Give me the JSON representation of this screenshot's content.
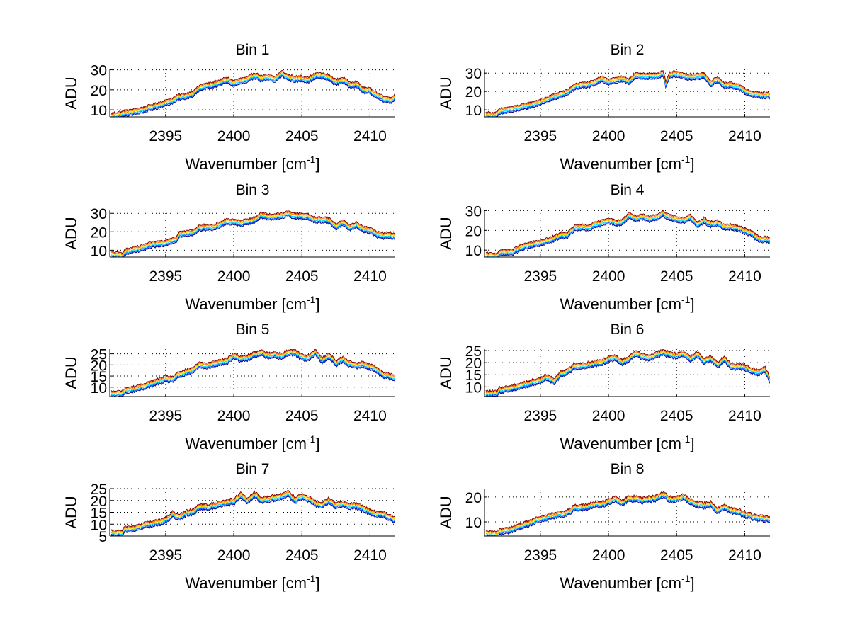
{
  "figure": {
    "background": "#ffffff",
    "series_colors": [
      "#00008f",
      "#0050ff",
      "#00dfff",
      "#ffe000",
      "#ff6f00",
      "#800000"
    ],
    "series_offsets": [
      -1.4,
      -0.8,
      -0.2,
      0.4,
      1.0,
      1.6
    ]
  },
  "chart_data": [
    {
      "type": "line",
      "title": "Bin 1",
      "xlabel": "Wavenumber [cm",
      "xlabel_sup": "-1",
      "xlabel_close": "]",
      "ylabel": "ADU",
      "xlim": [
        2390.9,
        2411.85
      ],
      "ylim": [
        6.5,
        30.2
      ],
      "xticks": [
        2395,
        2400,
        2405,
        2410
      ],
      "xtick_labels": [
        "2395",
        "2400",
        "2405",
        "2410"
      ],
      "yticks": [
        10,
        20,
        30
      ],
      "ytick_labels": [
        "10",
        "20",
        "30"
      ],
      "grid": true,
      "x": [
        2391,
        2392,
        2393,
        2394,
        2395,
        2395.5,
        2396,
        2396.5,
        2397,
        2397.5,
        2398,
        2398.5,
        2399,
        2399.5,
        2400,
        2400.5,
        2401,
        2401.5,
        2402,
        2402.5,
        2403,
        2403.5,
        2404,
        2404.5,
        2405,
        2405.5,
        2406,
        2406.5,
        2407,
        2407.5,
        2408,
        2408.5,
        2409,
        2409.5,
        2410,
        2410.5,
        2411,
        2411.5,
        2411.85
      ],
      "y": [
        6.8,
        8.0,
        9.3,
        11.2,
        13.3,
        14.5,
        16.2,
        16.8,
        18.0,
        20.8,
        21.8,
        22.3,
        23.5,
        24.8,
        23.2,
        24.2,
        24.8,
        27.2,
        25.6,
        26.0,
        25.0,
        28.0,
        26.0,
        25.2,
        25.4,
        25.0,
        27.0,
        26.8,
        26.0,
        23.6,
        24.8,
        22.4,
        22.8,
        19.6,
        19.4,
        17.2,
        15.4,
        14.6,
        16.4
      ]
    },
    {
      "type": "line",
      "title": "Bin 2",
      "xlabel": "Wavenumber [cm",
      "xlabel_sup": "-1",
      "xlabel_close": "]",
      "ylabel": "ADU",
      "xlim": [
        2390.9,
        2411.85
      ],
      "ylim": [
        6.2,
        32
      ],
      "xticks": [
        2395,
        2400,
        2405,
        2410
      ],
      "xtick_labels": [
        "2395",
        "2400",
        "2405",
        "2410"
      ],
      "yticks": [
        10,
        20,
        30
      ],
      "ytick_labels": [
        "10",
        "20",
        "30"
      ],
      "grid": true,
      "x": [
        2391,
        2391.8,
        2392,
        2393,
        2394,
        2395,
        2396,
        2396.5,
        2397,
        2397.5,
        2398,
        2398.5,
        2399,
        2399.5,
        2400,
        2400.5,
        2401,
        2401.5,
        2402,
        2402.5,
        2403,
        2403.5,
        2404,
        2404.2,
        2404.5,
        2405,
        2405.5,
        2406,
        2406.5,
        2407,
        2407.5,
        2408,
        2408.5,
        2409,
        2409.5,
        2410,
        2410.5,
        2411,
        2411.85
      ],
      "y": [
        7.0,
        7.0,
        9.0,
        10.2,
        12.0,
        14.0,
        17.0,
        18.0,
        19.5,
        22.5,
        23.2,
        23.5,
        24.5,
        27.0,
        25.0,
        26.0,
        26.5,
        25.5,
        28.5,
        28.0,
        28.5,
        28.0,
        30.0,
        24.0,
        29.0,
        29.5,
        28.0,
        27.5,
        28.0,
        28.5,
        24.0,
        26.5,
        23.0,
        23.5,
        22.5,
        20.0,
        18.5,
        18.0,
        17.5
      ]
    },
    {
      "type": "line",
      "title": "Bin 3",
      "xlabel": "Wavenumber [cm",
      "xlabel_sup": "-1",
      "xlabel_close": "]",
      "ylabel": "ADU",
      "xlim": [
        2390.9,
        2411.85
      ],
      "ylim": [
        6.3,
        32
      ],
      "xticks": [
        2395,
        2400,
        2405,
        2410
      ],
      "xtick_labels": [
        "2395",
        "2400",
        "2405",
        "2410"
      ],
      "yticks": [
        10,
        20,
        30
      ],
      "ytick_labels": [
        "10",
        "20",
        "30"
      ],
      "grid": true,
      "x": [
        2391,
        2391.8,
        2392,
        2393,
        2394,
        2395,
        2395.8,
        2396,
        2396.5,
        2397,
        2397.5,
        2398,
        2398.5,
        2399,
        2399.5,
        2400,
        2400.5,
        2401,
        2401.5,
        2402,
        2402.5,
        2403,
        2403.5,
        2404,
        2404.5,
        2405,
        2405.5,
        2406,
        2406.5,
        2407,
        2407.5,
        2408,
        2408.5,
        2409,
        2409.5,
        2410,
        2410.5,
        2411,
        2411.5,
        2411.85
      ],
      "y": [
        7.5,
        7.0,
        9.0,
        10.5,
        12.8,
        14.0,
        16.0,
        18.5,
        18.8,
        19.5,
        22.0,
        22.5,
        22.0,
        24.0,
        25.5,
        25.0,
        24.5,
        25.5,
        26.0,
        29.0,
        28.0,
        28.0,
        28.5,
        29.5,
        28.5,
        28.5,
        28.0,
        26.0,
        26.5,
        26.0,
        22.5,
        25.0,
        22.0,
        23.5,
        21.5,
        20.5,
        18.5,
        17.5,
        18.0,
        17.0
      ]
    },
    {
      "type": "line",
      "title": "Bin 4",
      "xlabel": "Wavenumber [cm",
      "xlabel_sup": "-1",
      "xlabel_close": "]",
      "ylabel": "ADU",
      "xlim": [
        2390.9,
        2411.85
      ],
      "ylim": [
        6.5,
        30.5
      ],
      "xticks": [
        2395,
        2400,
        2405,
        2410
      ],
      "xtick_labels": [
        "2395",
        "2400",
        "2405",
        "2410"
      ],
      "yticks": [
        10,
        20,
        30
      ],
      "ytick_labels": [
        "10",
        "20",
        "30"
      ],
      "grid": true,
      "x": [
        2391,
        2391.8,
        2392,
        2393,
        2393.5,
        2394,
        2395,
        2395.8,
        2396.5,
        2397,
        2397.5,
        2398,
        2398.5,
        2399,
        2399.5,
        2400,
        2400.5,
        2401,
        2401.5,
        2402,
        2402.5,
        2403,
        2403.5,
        2404,
        2404.5,
        2405,
        2405.5,
        2406,
        2406.5,
        2407,
        2407.5,
        2408,
        2408.5,
        2409,
        2409.5,
        2410,
        2410.5,
        2411,
        2411.85
      ],
      "y": [
        7.0,
        7.0,
        8.5,
        9.0,
        11.0,
        12.0,
        13.5,
        15.0,
        17.5,
        17.5,
        21.0,
        21.5,
        21.0,
        22.5,
        23.5,
        25.0,
        23.5,
        24.0,
        27.5,
        26.0,
        26.5,
        25.5,
        26.5,
        28.5,
        26.5,
        25.5,
        25.0,
        26.5,
        22.5,
        25.0,
        23.0,
        23.5,
        21.5,
        21.5,
        21.0,
        19.5,
        18.5,
        15.5,
        15.0
      ]
    },
    {
      "type": "line",
      "title": "Bin 5",
      "xlabel": "Wavenumber [cm",
      "xlabel_sup": "-1",
      "xlabel_close": "]",
      "ylabel": "ADU",
      "xlim": [
        2390.9,
        2411.85
      ],
      "ylim": [
        5.8,
        27.1
      ],
      "xticks": [
        2395,
        2400,
        2405,
        2410
      ],
      "xtick_labels": [
        "2395",
        "2400",
        "2405",
        "2410"
      ],
      "yticks": [
        10,
        15,
        20,
        25
      ],
      "ytick_labels": [
        "10",
        "15",
        "20",
        "25"
      ],
      "grid": true,
      "x": [
        2391,
        2391.8,
        2392,
        2393,
        2393.5,
        2394,
        2395,
        2395.5,
        2396,
        2396.5,
        2397,
        2397.5,
        2398,
        2398.5,
        2399,
        2399.5,
        2400,
        2400.5,
        2401,
        2401.5,
        2402,
        2402.5,
        2403,
        2403.5,
        2404,
        2404.5,
        2405,
        2405.5,
        2406,
        2406.5,
        2407,
        2407.5,
        2408,
        2408.5,
        2409,
        2409.5,
        2410,
        2410.5,
        2411,
        2411.85
      ],
      "y": [
        6.8,
        7.0,
        8.2,
        9.5,
        10.5,
        11.5,
        13.5,
        13.5,
        15.5,
        16.5,
        17.5,
        20.0,
        19.5,
        20.5,
        21.0,
        21.5,
        24.0,
        22.5,
        23.0,
        24.5,
        25.5,
        24.0,
        24.5,
        24.0,
        25.5,
        25.5,
        23.5,
        23.0,
        25.5,
        22.0,
        24.0,
        20.5,
        22.5,
        20.5,
        19.5,
        20.0,
        19.0,
        17.5,
        15.5,
        14.0
      ]
    },
    {
      "type": "line",
      "title": "Bin 6",
      "xlabel": "Wavenumber [cm",
      "xlabel_sup": "-1",
      "xlabel_close": "]",
      "ylabel": "ADU",
      "xlim": [
        2390.9,
        2411.85
      ],
      "ylim": [
        6.0,
        25.6
      ],
      "xticks": [
        2395,
        2400,
        2405,
        2410
      ],
      "xtick_labels": [
        "2395",
        "2400",
        "2405",
        "2410"
      ],
      "yticks": [
        10,
        15,
        20,
        25
      ],
      "ytick_labels": [
        "10",
        "15",
        "20",
        "25"
      ],
      "grid": true,
      "x": [
        2391,
        2391.8,
        2392,
        2393,
        2394,
        2395,
        2395.5,
        2396,
        2396.5,
        2397,
        2397.5,
        2398,
        2398.5,
        2399,
        2399.5,
        2400,
        2400.5,
        2401,
        2401.5,
        2402,
        2402.5,
        2403,
        2403.5,
        2404,
        2404.5,
        2405,
        2405.5,
        2406,
        2406.5,
        2407,
        2407.5,
        2408,
        2408.5,
        2409,
        2409.5,
        2410,
        2410.5,
        2411,
        2411.5,
        2411.85
      ],
      "y": [
        7.0,
        7.0,
        8.5,
        9.5,
        11.0,
        12.5,
        14.0,
        12.0,
        15.5,
        16.0,
        18.5,
        18.5,
        19.0,
        19.5,
        20.0,
        21.5,
        22.0,
        20.0,
        21.5,
        24.0,
        22.5,
        22.0,
        23.0,
        24.0,
        23.5,
        22.5,
        23.5,
        21.5,
        23.5,
        20.5,
        21.5,
        19.0,
        21.5,
        18.0,
        18.5,
        18.0,
        16.5,
        16.0,
        17.0,
        12.5
      ]
    },
    {
      "type": "line",
      "title": "Bin 7",
      "xlabel": "Wavenumber [cm",
      "xlabel_sup": "-1",
      "xlabel_close": "]",
      "ylabel": "ADU",
      "xlim": [
        2390.9,
        2411.85
      ],
      "ylim": [
        5,
        25
      ],
      "xticks": [
        2395,
        2400,
        2405,
        2410
      ],
      "xtick_labels": [
        "2395",
        "2400",
        "2405",
        "2410"
      ],
      "yticks": [
        5,
        10,
        15,
        20,
        25
      ],
      "ytick_labels": [
        "5",
        "10",
        "15",
        "20",
        "25"
      ],
      "grid": true,
      "x": [
        2391,
        2391.8,
        2392,
        2393,
        2393.5,
        2394,
        2395,
        2395.5,
        2396,
        2396.5,
        2397,
        2397.5,
        2398,
        2398.5,
        2399,
        2399.5,
        2400,
        2400.5,
        2401,
        2401.5,
        2402,
        2402.5,
        2403,
        2403.5,
        2404,
        2404.5,
        2405,
        2405.5,
        2406,
        2406.5,
        2407,
        2407.5,
        2408,
        2408.5,
        2409,
        2409.5,
        2410,
        2410.5,
        2411,
        2411.85
      ],
      "y": [
        6.0,
        6.0,
        7.5,
        8.5,
        9.5,
        10.0,
        11.5,
        14.0,
        12.5,
        14.5,
        15.0,
        17.5,
        17.0,
        17.5,
        18.5,
        19.0,
        19.5,
        22.0,
        19.5,
        22.5,
        20.0,
        20.5,
        21.0,
        21.5,
        23.0,
        20.0,
        21.5,
        20.5,
        18.5,
        18.0,
        20.0,
        17.5,
        18.5,
        17.5,
        17.5,
        16.5,
        15.0,
        14.0,
        14.0,
        11.5
      ]
    },
    {
      "type": "line",
      "title": "Bin 8",
      "xlabel": "Wavenumber [cm",
      "xlabel_sup": "-1",
      "xlabel_close": "]",
      "ylabel": "ADU",
      "xlim": [
        2390.9,
        2411.85
      ],
      "ylim": [
        4.3,
        23.4
      ],
      "xticks": [
        2395,
        2400,
        2405,
        2410
      ],
      "xtick_labels": [
        "2395",
        "2400",
        "2405",
        "2410"
      ],
      "yticks": [
        10,
        20
      ],
      "ytick_labels": [
        "10",
        "20"
      ],
      "grid": true,
      "x": [
        2391,
        2391.8,
        2392,
        2393,
        2393.5,
        2394,
        2394.5,
        2395,
        2396,
        2396.5,
        2397,
        2397.5,
        2398,
        2398.5,
        2399,
        2399.5,
        2400,
        2400.5,
        2401,
        2401.5,
        2402,
        2402.5,
        2403,
        2403.5,
        2404,
        2404.5,
        2405,
        2405.5,
        2406,
        2406.5,
        2407,
        2407.5,
        2408,
        2408.5,
        2409,
        2409.5,
        2410,
        2410.5,
        2411,
        2411.85
      ],
      "y": [
        5.0,
        4.8,
        6.0,
        7.0,
        8.0,
        9.0,
        10.0,
        11.0,
        12.5,
        13.0,
        13.5,
        15.5,
        15.5,
        16.0,
        17.0,
        17.0,
        18.0,
        19.0,
        17.5,
        19.5,
        19.0,
        18.5,
        19.0,
        19.5,
        21.0,
        19.0,
        19.0,
        20.0,
        18.0,
        17.0,
        16.5,
        17.0,
        14.5,
        16.0,
        14.5,
        14.0,
        13.0,
        12.0,
        11.5,
        11.0
      ]
    }
  ]
}
